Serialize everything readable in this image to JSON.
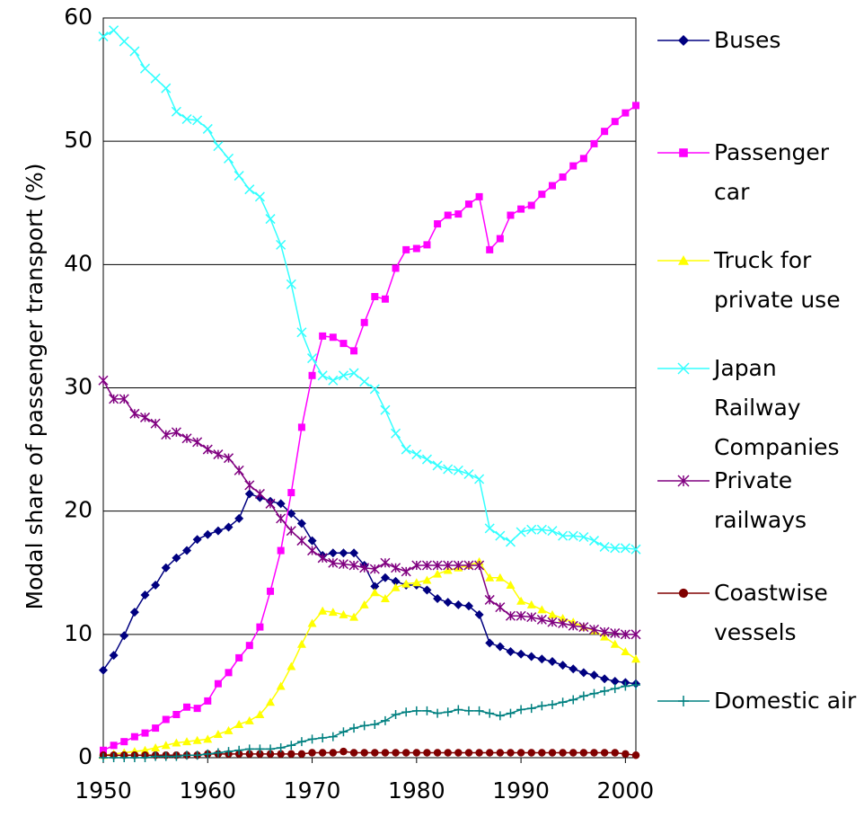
{
  "chart_data": {
    "type": "line",
    "y_label": "Modal share of passenger transport (%)",
    "x": [
      1950,
      1951,
      1952,
      1953,
      1954,
      1955,
      1956,
      1957,
      1958,
      1959,
      1960,
      1961,
      1962,
      1963,
      1964,
      1965,
      1966,
      1967,
      1968,
      1969,
      1970,
      1971,
      1972,
      1973,
      1974,
      1975,
      1976,
      1977,
      1978,
      1979,
      1980,
      1981,
      1982,
      1983,
      1984,
      1985,
      1986,
      1987,
      1988,
      1989,
      1990,
      1991,
      1992,
      1993,
      1994,
      1995,
      1996,
      1997,
      1998,
      1999,
      2000,
      2001
    ],
    "xlim": [
      1950,
      2001
    ],
    "xticks": [
      1950,
      1960,
      1970,
      1980,
      1990,
      2000
    ],
    "ylim": [
      0,
      60
    ],
    "yticks": [
      0,
      10,
      20,
      30,
      40,
      50,
      60
    ],
    "grid": true,
    "series": [
      {
        "name": "Buses",
        "color": "#000080",
        "marker": "diamond",
        "values": [
          7.1,
          8.3,
          9.9,
          11.8,
          13.2,
          14.0,
          15.4,
          16.2,
          16.8,
          17.7,
          18.1,
          18.4,
          18.7,
          19.4,
          21.4,
          21.1,
          20.8,
          20.6,
          19.8,
          19.0,
          17.6,
          16.4,
          16.6,
          16.6,
          16.6,
          15.6,
          13.9,
          14.6,
          14.3,
          14.0,
          14.0,
          13.6,
          12.9,
          12.6,
          12.4,
          12.3,
          11.6,
          9.3,
          9.0,
          8.6,
          8.4,
          8.2,
          8.0,
          7.8,
          7.5,
          7.2,
          6.9,
          6.7,
          6.4,
          6.2,
          6.1,
          6.0
        ]
      },
      {
        "name": "Passenger car",
        "color": "#ff00ff",
        "marker": "square",
        "values": [
          0.6,
          1.0,
          1.3,
          1.7,
          2.0,
          2.4,
          3.1,
          3.5,
          4.1,
          4.0,
          4.6,
          6.0,
          6.9,
          8.1,
          9.1,
          10.6,
          13.5,
          16.8,
          21.5,
          26.8,
          31.0,
          34.2,
          34.1,
          33.6,
          33.0,
          35.3,
          37.4,
          37.2,
          39.7,
          41.2,
          41.3,
          41.6,
          43.3,
          44.0,
          44.1,
          44.9,
          45.5,
          41.2,
          42.1,
          44.0,
          44.5,
          44.8,
          45.7,
          46.4,
          47.1,
          48.0,
          48.6,
          49.8,
          50.8,
          51.6,
          52.3,
          52.9
        ]
      },
      {
        "name": "Truck for private use",
        "color": "#ffff00",
        "marker": "triangle",
        "values": [
          0.2,
          0.3,
          0.4,
          0.5,
          0.6,
          0.8,
          1.0,
          1.2,
          1.3,
          1.4,
          1.5,
          1.9,
          2.2,
          2.7,
          3.0,
          3.5,
          4.5,
          5.8,
          7.4,
          9.2,
          10.9,
          11.9,
          11.8,
          11.6,
          11.4,
          12.4,
          13.4,
          12.9,
          13.8,
          14.1,
          14.2,
          14.4,
          14.9,
          15.2,
          15.4,
          15.6,
          15.9,
          14.6,
          14.6,
          14.0,
          12.7,
          12.4,
          12.0,
          11.6,
          11.3,
          11.0,
          10.6,
          10.3,
          9.8,
          9.2,
          8.6,
          8.0
        ]
      },
      {
        "name": "Japan Railway Companies",
        "color": "#33ffff",
        "marker": "x",
        "values": [
          58.5,
          59.0,
          58.1,
          57.3,
          55.9,
          55.1,
          54.3,
          52.4,
          51.8,
          51.7,
          51.0,
          49.6,
          48.6,
          47.2,
          46.1,
          45.5,
          43.7,
          41.6,
          38.4,
          34.5,
          32.4,
          31.0,
          30.6,
          31.0,
          31.2,
          30.5,
          29.9,
          28.2,
          26.3,
          25.0,
          24.6,
          24.2,
          23.7,
          23.4,
          23.3,
          23.0,
          22.6,
          18.6,
          18.0,
          17.5,
          18.3,
          18.5,
          18.5,
          18.4,
          18.0,
          18.0,
          17.9,
          17.6,
          17.1,
          17.0,
          17.0,
          16.9
        ]
      },
      {
        "name": "Private railways",
        "color": "#800080",
        "marker": "asterisk",
        "values": [
          30.6,
          29.1,
          29.1,
          27.9,
          27.6,
          27.1,
          26.2,
          26.4,
          25.9,
          25.6,
          25.0,
          24.6,
          24.3,
          23.3,
          22.1,
          21.4,
          20.6,
          19.4,
          18.4,
          17.6,
          16.8,
          16.2,
          15.8,
          15.7,
          15.6,
          15.4,
          15.3,
          15.8,
          15.4,
          15.1,
          15.6,
          15.6,
          15.6,
          15.6,
          15.6,
          15.6,
          15.6,
          12.8,
          12.2,
          11.5,
          11.5,
          11.4,
          11.2,
          11.0,
          10.9,
          10.7,
          10.6,
          10.4,
          10.2,
          10.1,
          10.0,
          10.0
        ]
      },
      {
        "name": "Coastwise vessels",
        "color": "#800000",
        "marker": "circle",
        "values": [
          0.2,
          0.2,
          0.2,
          0.2,
          0.2,
          0.2,
          0.2,
          0.2,
          0.2,
          0.2,
          0.3,
          0.3,
          0.3,
          0.3,
          0.3,
          0.3,
          0.3,
          0.3,
          0.3,
          0.3,
          0.4,
          0.4,
          0.4,
          0.5,
          0.4,
          0.4,
          0.4,
          0.4,
          0.4,
          0.4,
          0.4,
          0.4,
          0.4,
          0.4,
          0.4,
          0.4,
          0.4,
          0.4,
          0.4,
          0.4,
          0.4,
          0.4,
          0.4,
          0.4,
          0.4,
          0.4,
          0.4,
          0.4,
          0.4,
          0.4,
          0.3,
          0.2
        ]
      },
      {
        "name": "Domestic air",
        "color": "#008080",
        "marker": "plus",
        "values": [
          0.0,
          0.0,
          0.0,
          0.0,
          0.0,
          0.1,
          0.1,
          0.1,
          0.2,
          0.2,
          0.3,
          0.4,
          0.5,
          0.6,
          0.7,
          0.7,
          0.7,
          0.8,
          1.0,
          1.3,
          1.5,
          1.6,
          1.7,
          2.1,
          2.4,
          2.6,
          2.7,
          3.0,
          3.5,
          3.7,
          3.8,
          3.8,
          3.6,
          3.7,
          3.9,
          3.8,
          3.8,
          3.6,
          3.4,
          3.6,
          3.9,
          4.0,
          4.2,
          4.3,
          4.5,
          4.7,
          5.0,
          5.2,
          5.4,
          5.6,
          5.8,
          5.9
        ]
      }
    ]
  }
}
